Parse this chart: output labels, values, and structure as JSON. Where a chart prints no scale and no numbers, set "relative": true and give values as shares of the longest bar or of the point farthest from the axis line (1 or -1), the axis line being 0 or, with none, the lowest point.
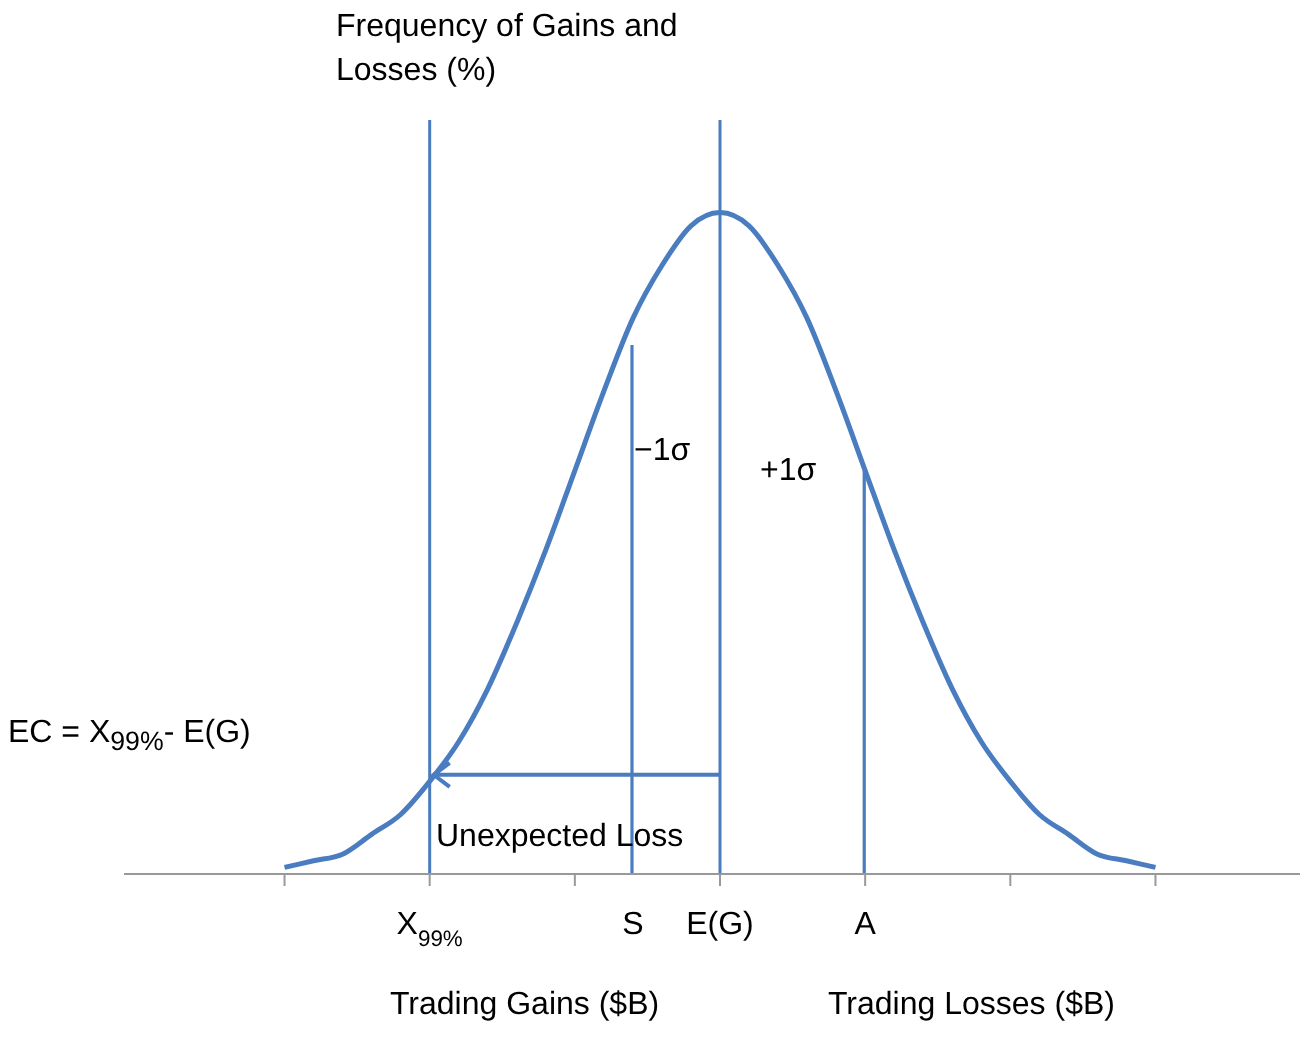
{
  "chart_data": {
    "type": "line",
    "relative": true,
    "ylabel": "Frequency of Gains and Losses (%)",
    "xlabel": "Trading Gains ($B)",
    "categories": [
      null,
      null,
      null,
      null,
      null,
      "X$_{99%}$",
      null,
      null,
      null,
      null,
      null,
      null,
      "S",
      null,
      null,
      "E(G)",
      null,
      null,
      null,
      null,
      "A",
      null,
      null,
      null,
      null,
      null,
      null,
      null,
      null,
      null,
      null
    ],
    "series": [
      {
        "color": "#4a7cc0",
        "values": [
          0.01,
          0.02,
          0.03,
          0.06,
          0.09,
          0.14,
          0.2,
          0.28,
          0.38,
          0.49,
          0.61,
          0.73,
          0.84,
          0.92,
          0.98,
          1,
          0.98,
          0.92,
          0.84,
          0.73,
          0.61,
          0.49,
          0.38,
          0.28,
          0.2,
          0.14,
          0.09,
          0.06,
          0.03,
          0.02,
          0.01
        ]
      },
      {
        "type": "bar",
        "color": "#4a7cc0",
        "values": [
          null,
          null,
          null,
          null,
          null,
          null,
          null,
          null,
          null,
          null,
          null,
          null,
          0.8,
          null,
          null,
          null,
          null,
          null,
          null,
          null,
          0.61,
          null,
          null,
          null,
          null,
          null,
          null,
          null,
          null,
          null,
          null
        ]
      }
    ],
    "ref_lines": [
      {
        "axis": "x",
        "value": "X$_{99%}$",
        "color": "#4a7cc0"
      },
      {
        "axis": "x",
        "value": "E(G)",
        "color": "#4a7cc0"
      }
    ],
    "annotations": [
      "−1σ",
      "+1σ",
      "EC = X$_{99%}$- E(G)",
      "Unexpected Loss",
      "Trading Losses ($B)"
    ],
    "marker": "none",
    "line_style": "solid"
  }
}
